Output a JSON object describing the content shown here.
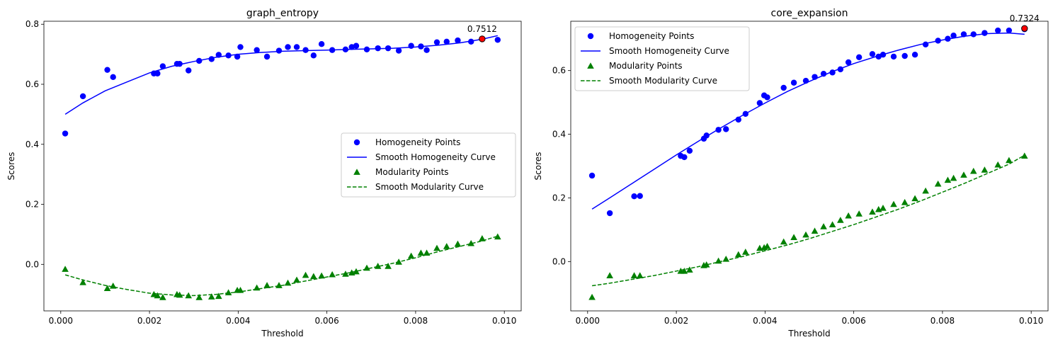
{
  "chart_data": [
    {
      "type": "scatter",
      "title": "graph_entropy",
      "xlabel": "Threshold",
      "ylabel": "Scores",
      "xlim": [
        -0.00038,
        0.01038
      ],
      "ylim": [
        -0.155,
        0.81
      ],
      "xticks": [
        0.0,
        0.002,
        0.004,
        0.006,
        0.008,
        0.01
      ],
      "xtick_labels": [
        "0.000",
        "0.002",
        "0.004",
        "0.006",
        "0.008",
        "0.010"
      ],
      "yticks": [
        0.0,
        0.2,
        0.4,
        0.6,
        0.8
      ],
      "ytick_labels": [
        "0.0",
        "0.2",
        "0.4",
        "0.6",
        "0.8"
      ],
      "legend_position": "center-right",
      "grid": false,
      "series": [
        {
          "name": "Homogeneity Points",
          "kind": "points",
          "marker": "circle",
          "color": "#0000ff",
          "x": [
            0.0001,
            0.0005,
            0.00105,
            0.00118,
            0.0021,
            0.00218,
            0.0023,
            0.00262,
            0.00268,
            0.00288,
            0.00312,
            0.0034,
            0.00356,
            0.00378,
            0.00398,
            0.00405,
            0.00442,
            0.00465,
            0.00492,
            0.00512,
            0.00532,
            0.00552,
            0.0057,
            0.00588,
            0.00612,
            0.00642,
            0.00656,
            0.00666,
            0.0069,
            0.00715,
            0.00738,
            0.00762,
            0.0079,
            0.00812,
            0.00825,
            0.00848,
            0.0087,
            0.00895,
            0.00925,
            0.00985
          ],
          "y": [
            0.436,
            0.56,
            0.648,
            0.624,
            0.636,
            0.636,
            0.66,
            0.668,
            0.668,
            0.646,
            0.678,
            0.684,
            0.698,
            0.696,
            0.692,
            0.724,
            0.714,
            0.692,
            0.712,
            0.724,
            0.724,
            0.714,
            0.696,
            0.734,
            0.714,
            0.716,
            0.724,
            0.728,
            0.716,
            0.72,
            0.72,
            0.712,
            0.728,
            0.726,
            0.714,
            0.74,
            0.742,
            0.746,
            0.742,
            0.748
          ]
        },
        {
          "name": "Smooth Homogeneity Curve",
          "kind": "line",
          "dash": "solid",
          "color": "#0000ff",
          "x": [
            0.0001,
            0.0005,
            0.001,
            0.0015,
            0.002,
            0.0025,
            0.003,
            0.0035,
            0.004,
            0.0045,
            0.005,
            0.0055,
            0.006,
            0.0065,
            0.007,
            0.0075,
            0.008,
            0.0085,
            0.009,
            0.0095,
            0.00985
          ],
          "y": [
            0.5,
            0.538,
            0.578,
            0.608,
            0.638,
            0.66,
            0.676,
            0.69,
            0.7,
            0.706,
            0.71,
            0.712,
            0.714,
            0.716,
            0.718,
            0.72,
            0.724,
            0.73,
            0.738,
            0.75,
            0.762
          ]
        },
        {
          "name": "Modularity Points",
          "kind": "points",
          "marker": "triangle",
          "color": "#008000",
          "x": [
            0.0001,
            0.0005,
            0.00105,
            0.00118,
            0.0021,
            0.00218,
            0.0023,
            0.00262,
            0.00268,
            0.00288,
            0.00312,
            0.0034,
            0.00356,
            0.00378,
            0.00398,
            0.00405,
            0.00442,
            0.00465,
            0.00492,
            0.00512,
            0.00532,
            0.00552,
            0.0057,
            0.00588,
            0.00612,
            0.00642,
            0.00656,
            0.00666,
            0.0069,
            0.00715,
            0.00738,
            0.00762,
            0.0079,
            0.00812,
            0.00825,
            0.00848,
            0.0087,
            0.00895,
            0.00925,
            0.0095,
            0.00985
          ],
          "y": [
            -0.016,
            -0.06,
            -0.08,
            -0.072,
            -0.1,
            -0.104,
            -0.11,
            -0.1,
            -0.102,
            -0.104,
            -0.11,
            -0.108,
            -0.106,
            -0.094,
            -0.086,
            -0.086,
            -0.078,
            -0.07,
            -0.07,
            -0.062,
            -0.052,
            -0.036,
            -0.04,
            -0.038,
            -0.034,
            -0.032,
            -0.028,
            -0.024,
            -0.012,
            -0.006,
            -0.006,
            0.008,
            0.028,
            0.038,
            0.038,
            0.054,
            0.06,
            0.068,
            0.07,
            0.086,
            0.092
          ]
        },
        {
          "name": "Smooth Modularity Curve",
          "kind": "line",
          "dash": "dashed",
          "color": "#008000",
          "x": [
            0.0001,
            0.0005,
            0.001,
            0.0015,
            0.002,
            0.0025,
            0.003,
            0.0035,
            0.004,
            0.0045,
            0.005,
            0.0055,
            0.006,
            0.0065,
            0.007,
            0.0075,
            0.008,
            0.0085,
            0.009,
            0.0095,
            0.00985
          ],
          "y": [
            -0.035,
            -0.052,
            -0.07,
            -0.084,
            -0.096,
            -0.102,
            -0.104,
            -0.1,
            -0.092,
            -0.081,
            -0.07,
            -0.056,
            -0.042,
            -0.028,
            -0.012,
            0.004,
            0.022,
            0.042,
            0.06,
            0.078,
            0.094
          ]
        },
        {
          "name": "",
          "kind": "highlight",
          "marker": "circle",
          "color": "#ff0000",
          "edge": "#000000",
          "x": [
            0.0095
          ],
          "y": [
            0.7512
          ]
        }
      ],
      "annotations": [
        {
          "text": "0.7512",
          "x": 0.0095,
          "y": 0.7512
        }
      ]
    },
    {
      "type": "scatter",
      "title": "core_expansion",
      "xlabel": "Threshold",
      "ylabel": "Scores",
      "xlim": [
        -0.00038,
        0.01038
      ],
      "ylim": [
        -0.155,
        0.755
      ],
      "xticks": [
        0.0,
        0.002,
        0.004,
        0.006,
        0.008,
        0.01
      ],
      "xtick_labels": [
        "0.000",
        "0.002",
        "0.004",
        "0.006",
        "0.008",
        "0.010"
      ],
      "yticks": [
        0.0,
        0.2,
        0.4,
        0.6
      ],
      "ytick_labels": [
        "0.0",
        "0.2",
        "0.4",
        "0.6"
      ],
      "legend_position": "upper-left",
      "grid": false,
      "series": [
        {
          "name": "Homogeneity Points",
          "kind": "points",
          "marker": "circle",
          "color": "#0000ff",
          "x": [
            0.0001,
            0.0005,
            0.00105,
            0.00118,
            0.0021,
            0.00218,
            0.0023,
            0.00262,
            0.00268,
            0.00295,
            0.00312,
            0.0034,
            0.00356,
            0.00388,
            0.00398,
            0.00405,
            0.00442,
            0.00465,
            0.00492,
            0.00512,
            0.00532,
            0.00552,
            0.0057,
            0.00588,
            0.00612,
            0.00642,
            0.00656,
            0.00666,
            0.0069,
            0.00715,
            0.00738,
            0.00762,
            0.0079,
            0.00812,
            0.00825,
            0.00848,
            0.0087,
            0.00895,
            0.00925,
            0.0095,
            0.00985
          ],
          "y": [
            0.27,
            0.152,
            0.205,
            0.206,
            0.332,
            0.328,
            0.348,
            0.386,
            0.396,
            0.414,
            0.416,
            0.446,
            0.464,
            0.498,
            0.522,
            0.516,
            0.546,
            0.562,
            0.568,
            0.58,
            0.59,
            0.594,
            0.604,
            0.626,
            0.642,
            0.652,
            0.644,
            0.65,
            0.644,
            0.646,
            0.65,
            0.682,
            0.694,
            0.7,
            0.71,
            0.714,
            0.714,
            0.718,
            0.726,
            0.726,
            0.73
          ]
        },
        {
          "name": "Smooth Homogeneity Curve",
          "kind": "line",
          "dash": "solid",
          "color": "#0000ff",
          "x": [
            0.0001,
            0.0005,
            0.001,
            0.0015,
            0.002,
            0.0025,
            0.003,
            0.0035,
            0.004,
            0.0045,
            0.005,
            0.0055,
            0.006,
            0.0065,
            0.007,
            0.0075,
            0.008,
            0.0085,
            0.009,
            0.0095,
            0.00985
          ],
          "y": [
            0.165,
            0.2,
            0.245,
            0.29,
            0.335,
            0.378,
            0.42,
            0.46,
            0.498,
            0.534,
            0.566,
            0.596,
            0.622,
            0.644,
            0.664,
            0.682,
            0.696,
            0.708,
            0.716,
            0.718,
            0.714
          ]
        },
        {
          "name": "Modularity Points",
          "kind": "points",
          "marker": "triangle",
          "color": "#008000",
          "x": [
            0.0001,
            0.0005,
            0.00105,
            0.00118,
            0.0021,
            0.00218,
            0.0023,
            0.00262,
            0.00268,
            0.00295,
            0.00312,
            0.0034,
            0.00356,
            0.00388,
            0.00398,
            0.00405,
            0.00442,
            0.00465,
            0.00492,
            0.00512,
            0.00532,
            0.00552,
            0.0057,
            0.00588,
            0.00612,
            0.00642,
            0.00656,
            0.00666,
            0.0069,
            0.00715,
            0.00738,
            0.00762,
            0.0079,
            0.00812,
            0.00825,
            0.00848,
            0.0087,
            0.00895,
            0.00925,
            0.0095,
            0.00985
          ],
          "y": [
            -0.112,
            -0.044,
            -0.044,
            -0.044,
            -0.03,
            -0.03,
            -0.026,
            -0.012,
            -0.01,
            0.002,
            0.008,
            0.022,
            0.03,
            0.042,
            0.044,
            0.048,
            0.062,
            0.076,
            0.084,
            0.096,
            0.11,
            0.116,
            0.13,
            0.144,
            0.15,
            0.156,
            0.164,
            0.168,
            0.18,
            0.186,
            0.198,
            0.222,
            0.244,
            0.256,
            0.262,
            0.272,
            0.284,
            0.288,
            0.304,
            0.318,
            0.332
          ]
        },
        {
          "name": "Smooth Modularity Curve",
          "kind": "line",
          "dash": "dashed",
          "color": "#008000",
          "x": [
            0.0001,
            0.0005,
            0.001,
            0.0015,
            0.002,
            0.0025,
            0.003,
            0.0035,
            0.004,
            0.0045,
            0.005,
            0.0055,
            0.006,
            0.0065,
            0.007,
            0.0075,
            0.008,
            0.0085,
            0.009,
            0.0095,
            0.00985
          ],
          "y": [
            -0.076,
            -0.068,
            -0.056,
            -0.044,
            -0.03,
            -0.016,
            0.0,
            0.016,
            0.034,
            0.052,
            0.072,
            0.094,
            0.116,
            0.14,
            0.164,
            0.19,
            0.218,
            0.246,
            0.276,
            0.306,
            0.334
          ]
        },
        {
          "name": "",
          "kind": "highlight",
          "marker": "circle",
          "color": "#ff0000",
          "edge": "#000000",
          "x": [
            0.00985
          ],
          "y": [
            0.7324
          ]
        }
      ],
      "annotations": [
        {
          "text": "0.7324",
          "x": 0.00985,
          "y": 0.7324
        }
      ]
    }
  ]
}
